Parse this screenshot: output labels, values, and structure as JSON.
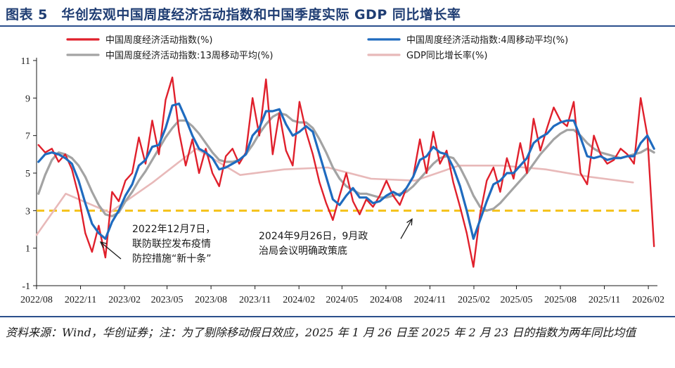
{
  "figure": {
    "title": "图表 5　华创宏观中国周度经济活动指数和中国季度实际 GDP 同比增长率",
    "source": "资料来源：Wind，华创证券；注：为了剔除移动假日效应，2025 年 1 月 26 日至 2025 年 2 月 23 日的指数为两年同比均值"
  },
  "chart_data": {
    "type": "line",
    "title": "",
    "xlabel": "",
    "ylabel": "",
    "xlim": [
      "2022-08-01",
      "2026-02-20"
    ],
    "ylim": [
      -1,
      11
    ],
    "yticks": [
      -1,
      1,
      3,
      5,
      7,
      9,
      11
    ],
    "xtick_labels": [
      "2022/08",
      "2022/11",
      "2023/02",
      "2023/05",
      "2023/08",
      "2023/11",
      "2024/02",
      "2024/05",
      "2024/08",
      "2024/11",
      "2025/02",
      "2025/05",
      "2025/08",
      "2025/11",
      "2026/02"
    ],
    "grid": false,
    "legend_position": "top",
    "reference_line": {
      "y": 3,
      "color": "#f5c21b",
      "style": "dashed"
    },
    "series": [
      {
        "name": "中国周度经济活动指数(%)",
        "color": "#e0202c",
        "x": [
          "2022-08-05",
          "2022-08-19",
          "2022-09-02",
          "2022-09-16",
          "2022-09-30",
          "2022-10-14",
          "2022-10-28",
          "2022-11-11",
          "2022-11-25",
          "2022-12-09",
          "2022-12-23",
          "2023-01-06",
          "2023-01-20",
          "2023-02-03",
          "2023-02-17",
          "2023-03-03",
          "2023-03-17",
          "2023-03-31",
          "2023-04-14",
          "2023-04-28",
          "2023-05-12",
          "2023-05-26",
          "2023-06-09",
          "2023-06-23",
          "2023-07-07",
          "2023-07-21",
          "2023-08-04",
          "2023-08-18",
          "2023-09-01",
          "2023-09-15",
          "2023-09-29",
          "2023-10-13",
          "2023-10-27",
          "2023-11-10",
          "2023-11-24",
          "2023-12-08",
          "2023-12-22",
          "2024-01-05",
          "2024-01-19",
          "2024-02-02",
          "2024-02-16",
          "2024-03-01",
          "2024-03-15",
          "2024-03-29",
          "2024-04-12",
          "2024-04-26",
          "2024-05-10",
          "2024-05-24",
          "2024-06-07",
          "2024-06-21",
          "2024-07-05",
          "2024-07-19",
          "2024-08-02",
          "2024-08-16",
          "2024-08-30",
          "2024-09-13",
          "2024-09-27",
          "2024-10-11",
          "2024-10-25",
          "2024-11-08",
          "2024-11-22",
          "2024-12-06",
          "2024-12-20",
          "2025-01-03",
          "2025-01-17",
          "2025-01-31",
          "2025-02-14",
          "2025-02-28",
          "2025-03-14",
          "2025-03-28",
          "2025-04-11",
          "2025-04-25",
          "2025-05-09",
          "2025-05-23",
          "2025-06-06",
          "2025-06-20",
          "2025-07-04",
          "2025-07-18",
          "2025-08-01",
          "2025-08-15",
          "2025-08-29",
          "2025-09-12",
          "2025-09-26",
          "2025-10-10",
          "2025-10-24",
          "2025-11-07",
          "2025-11-21",
          "2025-12-05",
          "2025-12-19",
          "2026-01-02",
          "2026-01-16",
          "2026-01-30",
          "2026-02-13"
        ],
        "values": [
          6.5,
          6.1,
          6.3,
          5.6,
          6.0,
          5.2,
          3.8,
          1.8,
          0.8,
          2.2,
          0.5,
          4.0,
          3.5,
          4.6,
          5.0,
          6.9,
          5.5,
          7.8,
          6.0,
          8.9,
          10.1,
          7.2,
          5.4,
          6.8,
          5.0,
          6.3,
          5.0,
          4.3,
          5.9,
          6.3,
          5.5,
          6.1,
          9.0,
          7.0,
          10.0,
          6.0,
          8.2,
          6.2,
          5.4,
          8.8,
          7.2,
          6.0,
          4.5,
          3.4,
          2.5,
          3.8,
          5.0,
          3.5,
          2.8,
          3.6,
          3.2,
          3.8,
          4.6,
          3.8,
          3.3,
          4.2,
          4.8,
          6.8,
          5.0,
          7.2,
          5.5,
          6.2,
          4.5,
          3.2,
          1.8,
          0.0,
          2.8,
          4.6,
          5.3,
          4.0,
          5.8,
          4.7,
          6.6,
          5.0,
          7.9,
          6.2,
          7.4,
          8.5,
          7.8,
          7.5,
          8.8,
          5.0,
          4.4,
          7.0,
          6.0,
          5.5,
          5.7,
          6.3,
          6.0,
          5.5,
          9.0,
          7.0,
          1.1
        ]
      },
      {
        "name": "中国周度经济活动指数:4周移动平均(%)",
        "color": "#1f6bbf",
        "x": [
          "2022-08-05",
          "2022-08-19",
          "2022-09-02",
          "2022-09-16",
          "2022-09-30",
          "2022-10-14",
          "2022-10-28",
          "2022-11-11",
          "2022-11-25",
          "2022-12-09",
          "2022-12-23",
          "2023-01-06",
          "2023-01-20",
          "2023-02-03",
          "2023-02-17",
          "2023-03-03",
          "2023-03-17",
          "2023-03-31",
          "2023-04-14",
          "2023-04-28",
          "2023-05-12",
          "2023-05-26",
          "2023-06-09",
          "2023-06-23",
          "2023-07-07",
          "2023-07-21",
          "2023-08-04",
          "2023-08-18",
          "2023-09-01",
          "2023-09-15",
          "2023-09-29",
          "2023-10-13",
          "2023-10-27",
          "2023-11-10",
          "2023-11-24",
          "2023-12-08",
          "2023-12-22",
          "2024-01-05",
          "2024-01-19",
          "2024-02-02",
          "2024-02-16",
          "2024-03-01",
          "2024-03-15",
          "2024-03-29",
          "2024-04-12",
          "2024-04-26",
          "2024-05-10",
          "2024-05-24",
          "2024-06-07",
          "2024-06-21",
          "2024-07-05",
          "2024-07-19",
          "2024-08-02",
          "2024-08-16",
          "2024-08-30",
          "2024-09-13",
          "2024-09-27",
          "2024-10-11",
          "2024-10-25",
          "2024-11-08",
          "2024-11-22",
          "2024-12-06",
          "2024-12-20",
          "2025-01-03",
          "2025-01-17",
          "2025-01-31",
          "2025-02-14",
          "2025-02-28",
          "2025-03-14",
          "2025-03-28",
          "2025-04-11",
          "2025-04-25",
          "2025-05-09",
          "2025-05-23",
          "2025-06-06",
          "2025-06-20",
          "2025-07-04",
          "2025-07-18",
          "2025-08-01",
          "2025-08-15",
          "2025-08-29",
          "2025-09-12",
          "2025-09-26",
          "2025-10-10",
          "2025-10-24",
          "2025-11-07",
          "2025-11-21",
          "2025-12-05",
          "2025-12-19",
          "2026-01-02",
          "2026-01-16",
          "2026-01-30",
          "2026-02-13"
        ],
        "values": [
          5.6,
          6.0,
          6.1,
          6.0,
          5.8,
          5.5,
          4.6,
          3.4,
          2.3,
          1.8,
          1.5,
          2.4,
          3.0,
          3.8,
          4.4,
          5.4,
          5.7,
          6.4,
          6.5,
          7.4,
          8.6,
          8.7,
          7.9,
          7.0,
          6.3,
          6.1,
          5.8,
          5.2,
          5.3,
          5.5,
          5.7,
          6.0,
          7.0,
          7.4,
          8.3,
          8.3,
          8.4,
          7.6,
          7.0,
          7.2,
          7.5,
          7.2,
          6.0,
          4.8,
          3.6,
          3.3,
          3.8,
          4.2,
          3.7,
          3.7,
          3.4,
          3.5,
          3.8,
          4.0,
          3.8,
          4.2,
          4.8,
          5.7,
          5.9,
          6.4,
          6.1,
          6.0,
          5.3,
          4.3,
          3.0,
          1.5,
          2.5,
          3.5,
          4.4,
          4.6,
          5.0,
          5.0,
          5.4,
          5.8,
          6.6,
          6.9,
          7.1,
          7.5,
          7.7,
          7.8,
          7.8,
          6.9,
          5.9,
          5.8,
          5.9,
          5.7,
          5.8,
          5.8,
          5.9,
          5.9,
          6.6,
          7.0,
          6.3
        ]
      },
      {
        "name": "中国周度经济活动指数:13周移动平均(%)",
        "color": "#a3a3a3",
        "x": [
          "2022-08-05",
          "2022-08-19",
          "2022-09-02",
          "2022-09-16",
          "2022-09-30",
          "2022-10-14",
          "2022-10-28",
          "2022-11-11",
          "2022-11-25",
          "2022-12-09",
          "2022-12-23",
          "2023-01-06",
          "2023-01-20",
          "2023-02-03",
          "2023-02-17",
          "2023-03-03",
          "2023-03-17",
          "2023-03-31",
          "2023-04-14",
          "2023-04-28",
          "2023-05-12",
          "2023-05-26",
          "2023-06-09",
          "2023-06-23",
          "2023-07-07",
          "2023-07-21",
          "2023-08-04",
          "2023-08-18",
          "2023-09-01",
          "2023-09-15",
          "2023-09-29",
          "2023-10-13",
          "2023-10-27",
          "2023-11-10",
          "2023-11-24",
          "2023-12-08",
          "2023-12-22",
          "2024-01-05",
          "2024-01-19",
          "2024-02-02",
          "2024-02-16",
          "2024-03-01",
          "2024-03-15",
          "2024-03-29",
          "2024-04-12",
          "2024-04-26",
          "2024-05-10",
          "2024-05-24",
          "2024-06-07",
          "2024-06-21",
          "2024-07-05",
          "2024-07-19",
          "2024-08-02",
          "2024-08-16",
          "2024-08-30",
          "2024-09-13",
          "2024-09-27",
          "2024-10-11",
          "2024-10-25",
          "2024-11-08",
          "2024-11-22",
          "2024-12-06",
          "2024-12-20",
          "2025-01-03",
          "2025-01-17",
          "2025-01-31",
          "2025-02-14",
          "2025-02-28",
          "2025-03-14",
          "2025-03-28",
          "2025-04-11",
          "2025-04-25",
          "2025-05-09",
          "2025-05-23",
          "2025-06-06",
          "2025-06-20",
          "2025-07-04",
          "2025-07-18",
          "2025-08-01",
          "2025-08-15",
          "2025-08-29",
          "2025-09-12",
          "2025-09-26",
          "2025-10-10",
          "2025-10-24",
          "2025-11-07",
          "2025-11-21",
          "2025-12-05",
          "2025-12-19",
          "2026-01-02",
          "2026-01-16",
          "2026-01-30",
          "2026-02-13"
        ],
        "values": [
          3.9,
          4.9,
          5.7,
          6.1,
          6.0,
          5.8,
          5.4,
          4.8,
          4.0,
          3.3,
          2.8,
          2.7,
          2.9,
          3.5,
          4.0,
          4.6,
          5.1,
          5.7,
          6.3,
          6.9,
          7.4,
          7.8,
          7.8,
          7.5,
          7.1,
          6.6,
          6.1,
          5.7,
          5.6,
          5.6,
          5.7,
          6.0,
          6.5,
          7.1,
          7.6,
          8.0,
          8.2,
          8.1,
          7.8,
          7.7,
          7.7,
          7.4,
          6.8,
          6.1,
          5.3,
          4.7,
          4.3,
          4.1,
          3.9,
          3.9,
          3.8,
          3.7,
          3.7,
          3.8,
          3.9,
          4.0,
          4.3,
          4.7,
          5.1,
          5.5,
          5.8,
          5.9,
          5.8,
          5.3,
          4.6,
          3.8,
          3.2,
          3.0,
          3.1,
          3.4,
          3.8,
          4.2,
          4.6,
          5.0,
          5.5,
          6.0,
          6.4,
          6.8,
          7.1,
          7.3,
          7.3,
          7.0,
          6.6,
          6.3,
          6.1,
          6.0,
          5.9,
          5.8,
          5.9,
          6.0,
          6.1,
          6.3,
          6.1
        ]
      },
      {
        "name": "GDP同比增长率(%)",
        "color": "#e8b9b9",
        "x": [
          "2022-08-01",
          "2022-10-01",
          "2023-01-01",
          "2023-04-01",
          "2023-07-01",
          "2023-10-01",
          "2024-01-01",
          "2024-04-01",
          "2024-07-01",
          "2024-10-01",
          "2025-01-01",
          "2025-04-01",
          "2025-07-01",
          "2025-10-01",
          "2025-12-31"
        ],
        "values": [
          1.7,
          3.9,
          2.9,
          4.5,
          6.3,
          4.9,
          5.2,
          5.3,
          4.7,
          4.6,
          5.4,
          5.4,
          5.2,
          4.8,
          4.5
        ]
      }
    ],
    "annotations": [
      {
        "date": "2022-12-07",
        "y": 1.4,
        "lines": [
          "2022年12月7日，",
          "联防联控发布疫情",
          "防控措施“新十条”"
        ]
      },
      {
        "date": "2024-09-26",
        "y": 2.7,
        "lines": [
          "2024年9月26日，9月政",
          "治局会议明确政策底"
        ]
      }
    ]
  }
}
